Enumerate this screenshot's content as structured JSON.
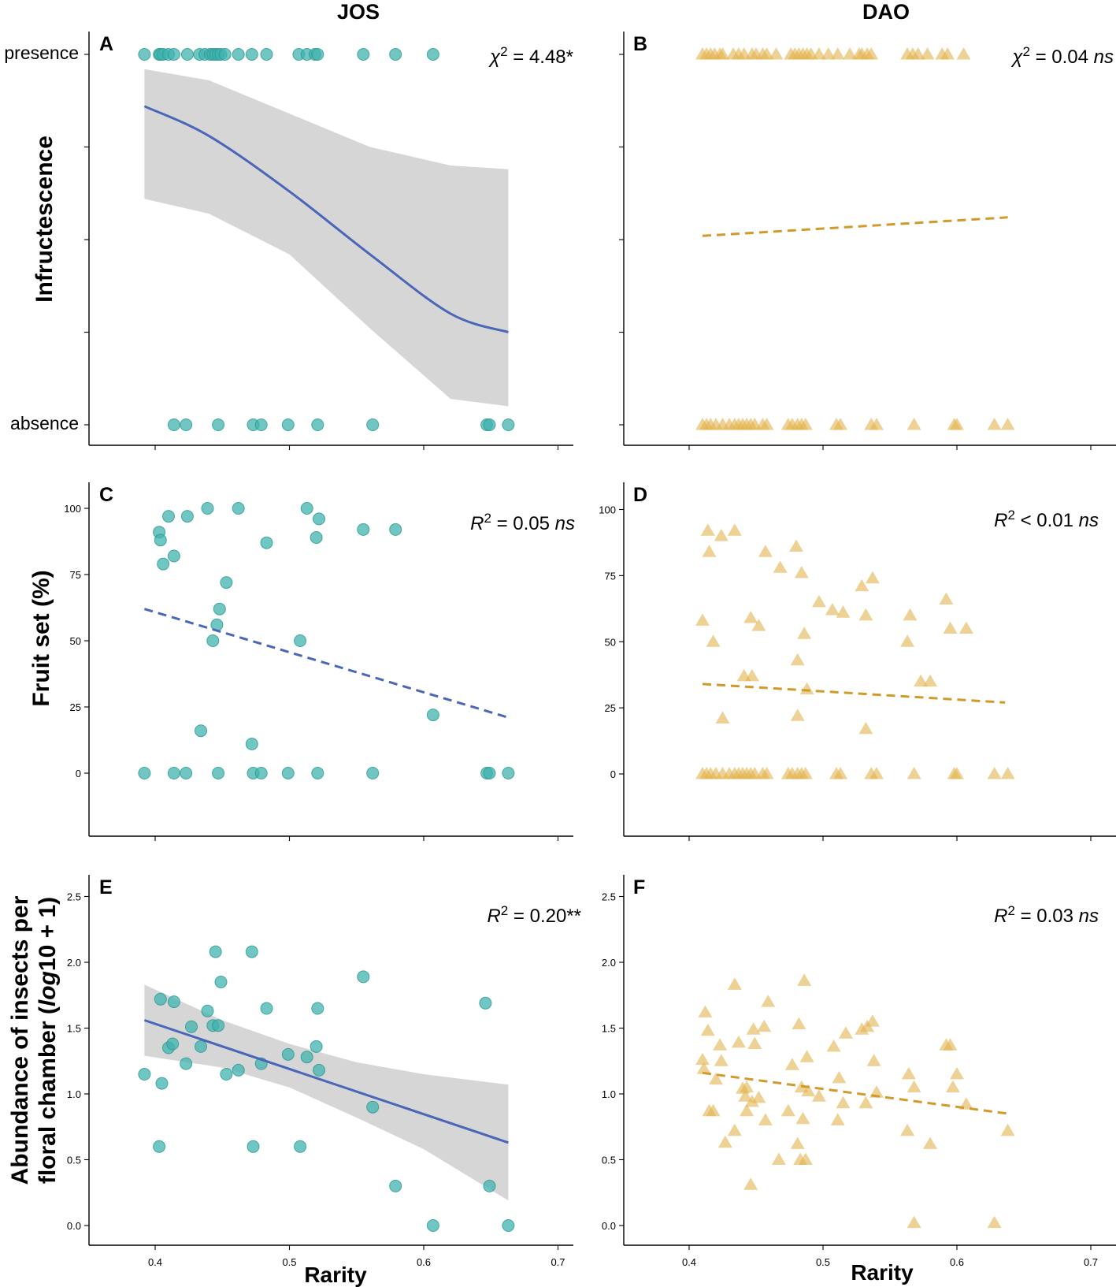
{
  "figure": {
    "column_titles": [
      "JOS",
      "DAO"
    ],
    "x_axis_title": "Rarity",
    "colors": {
      "jos_point": "#3fb3ad",
      "jos_point_edge": "#2c9690",
      "jos_line": "#4a66b8",
      "dao_point": "#e3b24c",
      "dao_line": "#d19a2a",
      "ci_band": "#d6d6d7"
    },
    "marker_icons": {
      "jos": "circle-icon",
      "dao": "triangle-icon"
    }
  },
  "chart_data": [
    {
      "id": "A",
      "panel_label": "A",
      "site": "JOS",
      "type": "scatter",
      "ylabel": "Infructescence",
      "category_labels": [
        "presence",
        "absence"
      ],
      "xlim": [
        0.35,
        0.7
      ],
      "xticks": [
        0.4,
        0.5,
        0.6,
        0.7
      ],
      "ylim": [
        -0.05,
        1.0
      ],
      "ylevel_ticks": [
        0,
        0.25,
        0.5,
        0.75,
        1
      ],
      "show_x_tick_labels": false,
      "stat_prefix": "χ",
      "stat_exp": "2",
      "stat_rest": " = 4.48*",
      "stat_italic": "",
      "marker": "circle",
      "presence_x": [
        0.392,
        0.403,
        0.404,
        0.406,
        0.41,
        0.414,
        0.424,
        0.433,
        0.437,
        0.441,
        0.443,
        0.445,
        0.447,
        0.449,
        0.452,
        0.462,
        0.472,
        0.483,
        0.507,
        0.513,
        0.519,
        0.521,
        0.555,
        0.579,
        0.607
      ],
      "absence_x": [
        0.414,
        0.423,
        0.447,
        0.473,
        0.479,
        0.499,
        0.521,
        0.562,
        0.647,
        0.649,
        0.663
      ],
      "fit": {
        "style": "solid",
        "x": [
          0.392,
          0.44,
          0.5,
          0.56,
          0.62,
          0.663
        ],
        "y": [
          0.86,
          0.78,
          0.63,
          0.46,
          0.3,
          0.25
        ]
      },
      "ci": {
        "x": [
          0.392,
          0.44,
          0.5,
          0.56,
          0.62,
          0.663
        ],
        "lower": [
          0.61,
          0.57,
          0.46,
          0.26,
          0.07,
          0.05
        ],
        "upper": [
          0.96,
          0.93,
          0.84,
          0.75,
          0.7,
          0.69
        ]
      }
    },
    {
      "id": "B",
      "panel_label": "B",
      "site": "DAO",
      "type": "scatter",
      "ylabel": "",
      "category_labels": [],
      "xlim": [
        0.35,
        0.7
      ],
      "xticks": [
        0.4,
        0.5,
        0.6,
        0.7
      ],
      "ylim": [
        -0.05,
        1.0
      ],
      "ylevel_ticks": [
        0,
        0.25,
        0.5,
        0.75,
        1
      ],
      "show_x_tick_labels": false,
      "stat_prefix": "χ",
      "stat_exp": "2",
      "stat_rest": " = 0.04 ",
      "stat_italic": "ns",
      "marker": "triangle",
      "presence_x": [
        0.41,
        0.413,
        0.416,
        0.419,
        0.423,
        0.425,
        0.433,
        0.437,
        0.441,
        0.447,
        0.45,
        0.455,
        0.458,
        0.465,
        0.476,
        0.479,
        0.482,
        0.485,
        0.488,
        0.491,
        0.497,
        0.504,
        0.511,
        0.52,
        0.527,
        0.529,
        0.533,
        0.536,
        0.563,
        0.567,
        0.571,
        0.578,
        0.589,
        0.593,
        0.605
      ],
      "absence_x": [
        0.41,
        0.413,
        0.416,
        0.42,
        0.425,
        0.43,
        0.434,
        0.437,
        0.44,
        0.443,
        0.446,
        0.449,
        0.455,
        0.458,
        0.474,
        0.477,
        0.481,
        0.484,
        0.487,
        0.51,
        0.513,
        0.536,
        0.54,
        0.568,
        0.598,
        0.6,
        0.628,
        0.638
      ],
      "fit": {
        "style": "dashed",
        "x": [
          0.41,
          0.638
        ],
        "y": [
          0.51,
          0.56
        ]
      }
    },
    {
      "id": "C",
      "panel_label": "C",
      "site": "JOS",
      "type": "scatter",
      "ylabel": "Fruit set (%)",
      "xlim": [
        0.35,
        0.7
      ],
      "xticks": [
        0.4,
        0.5,
        0.6,
        0.7
      ],
      "ylim": [
        -24,
        105
      ],
      "yticks": [
        0,
        25,
        50,
        75,
        100
      ],
      "show_x_tick_labels": false,
      "stat_prefix": "R",
      "stat_exp": "2",
      "stat_rest": " = 0.05 ",
      "stat_italic": "ns",
      "marker": "circle",
      "points": [
        [
          0.392,
          0
        ],
        [
          0.403,
          91
        ],
        [
          0.404,
          88
        ],
        [
          0.406,
          79
        ],
        [
          0.41,
          97
        ],
        [
          0.414,
          82
        ],
        [
          0.414,
          0
        ],
        [
          0.423,
          0
        ],
        [
          0.424,
          97
        ],
        [
          0.434,
          16
        ],
        [
          0.439,
          100
        ],
        [
          0.443,
          50
        ],
        [
          0.446,
          56
        ],
        [
          0.447,
          0
        ],
        [
          0.448,
          62
        ],
        [
          0.453,
          72
        ],
        [
          0.462,
          100
        ],
        [
          0.472,
          11
        ],
        [
          0.473,
          0
        ],
        [
          0.479,
          0
        ],
        [
          0.483,
          87
        ],
        [
          0.499,
          0
        ],
        [
          0.508,
          50
        ],
        [
          0.513,
          100
        ],
        [
          0.52,
          89
        ],
        [
          0.521,
          0
        ],
        [
          0.522,
          96
        ],
        [
          0.555,
          92
        ],
        [
          0.562,
          0
        ],
        [
          0.579,
          92
        ],
        [
          0.607,
          22
        ],
        [
          0.647,
          0
        ],
        [
          0.649,
          0
        ],
        [
          0.663,
          0
        ]
      ],
      "fit": {
        "style": "dashed",
        "x": [
          0.392,
          0.663
        ],
        "y": [
          62,
          21
        ]
      }
    },
    {
      "id": "D",
      "panel_label": "D",
      "site": "DAO",
      "type": "scatter",
      "ylabel": "",
      "xlim": [
        0.35,
        0.7
      ],
      "xticks": [
        0.4,
        0.5,
        0.6,
        0.7
      ],
      "ylim": [
        -24,
        105
      ],
      "yticks": [
        0,
        25,
        50,
        75,
        100
      ],
      "show_x_tick_labels": false,
      "stat_prefix": "R",
      "stat_exp": "2",
      "stat_rest": " < 0.01 ",
      "stat_italic": "ns",
      "marker": "triangle",
      "points": [
        [
          0.41,
          58
        ],
        [
          0.414,
          92
        ],
        [
          0.415,
          84
        ],
        [
          0.418,
          50
        ],
        [
          0.424,
          90
        ],
        [
          0.425,
          21
        ],
        [
          0.434,
          92
        ],
        [
          0.441,
          37
        ],
        [
          0.446,
          59
        ],
        [
          0.447,
          37
        ],
        [
          0.452,
          56
        ],
        [
          0.457,
          84
        ],
        [
          0.468,
          78
        ],
        [
          0.48,
          86
        ],
        [
          0.481,
          43
        ],
        [
          0.481,
          22
        ],
        [
          0.484,
          76
        ],
        [
          0.486,
          53
        ],
        [
          0.488,
          32
        ],
        [
          0.497,
          65
        ],
        [
          0.507,
          62
        ],
        [
          0.515,
          61
        ],
        [
          0.529,
          71
        ],
        [
          0.532,
          60
        ],
        [
          0.532,
          17
        ],
        [
          0.537,
          74
        ],
        [
          0.563,
          50
        ],
        [
          0.565,
          60
        ],
        [
          0.573,
          35
        ],
        [
          0.58,
          35
        ],
        [
          0.592,
          66
        ],
        [
          0.595,
          55
        ],
        [
          0.607,
          55
        ],
        [
          0.41,
          0
        ],
        [
          0.413,
          0
        ],
        [
          0.416,
          0
        ],
        [
          0.42,
          0
        ],
        [
          0.425,
          0
        ],
        [
          0.43,
          0
        ],
        [
          0.434,
          0
        ],
        [
          0.437,
          0
        ],
        [
          0.44,
          0
        ],
        [
          0.443,
          0
        ],
        [
          0.446,
          0
        ],
        [
          0.449,
          0
        ],
        [
          0.455,
          0
        ],
        [
          0.458,
          0
        ],
        [
          0.474,
          0
        ],
        [
          0.477,
          0
        ],
        [
          0.481,
          0
        ],
        [
          0.484,
          0
        ],
        [
          0.487,
          0
        ],
        [
          0.51,
          0
        ],
        [
          0.513,
          0
        ],
        [
          0.536,
          0
        ],
        [
          0.54,
          0
        ],
        [
          0.568,
          0
        ],
        [
          0.598,
          0
        ],
        [
          0.6,
          0
        ],
        [
          0.628,
          0
        ],
        [
          0.638,
          0
        ]
      ],
      "fit": {
        "style": "dashed",
        "x": [
          0.41,
          0.636
        ],
        "y": [
          34,
          27
        ]
      }
    },
    {
      "id": "E",
      "panel_label": "E",
      "site": "JOS",
      "type": "scatter",
      "ylabel": "Abundance of insects per floral chamber (log10 + 1)",
      "ylabel_line1": "Abundance of insects per",
      "ylabel_line2_pre": "floral chamber (",
      "ylabel_line2_italic": "log",
      "ylabel_line2_post": "10 + 1)",
      "xlabel": "Rarity",
      "xlim": [
        0.35,
        0.7
      ],
      "xticks": [
        0.4,
        0.5,
        0.6,
        0.7
      ],
      "xtick_labels": [
        "0.4",
        "0.5",
        "0.6",
        "0.7"
      ],
      "ylim": [
        -0.08,
        2.6
      ],
      "yticks": [
        0,
        0.5,
        1,
        1.5,
        2,
        2.5
      ],
      "ytick_labels": [
        "0.0",
        "0.5",
        "1.0",
        "1.5",
        "2.0",
        "2.5"
      ],
      "show_x_tick_labels": true,
      "stat_prefix": "R",
      "stat_exp": "2",
      "stat_rest": " = 0.20**",
      "stat_italic": "",
      "marker": "circle",
      "points": [
        [
          0.392,
          1.15
        ],
        [
          0.403,
          0.6
        ],
        [
          0.404,
          1.72
        ],
        [
          0.405,
          1.08
        ],
        [
          0.41,
          1.35
        ],
        [
          0.413,
          1.38
        ],
        [
          0.414,
          1.7
        ],
        [
          0.423,
          1.23
        ],
        [
          0.427,
          1.51
        ],
        [
          0.434,
          1.36
        ],
        [
          0.439,
          1.63
        ],
        [
          0.443,
          1.52
        ],
        [
          0.445,
          2.08
        ],
        [
          0.447,
          1.52
        ],
        [
          0.449,
          1.85
        ],
        [
          0.453,
          1.15
        ],
        [
          0.462,
          1.18
        ],
        [
          0.472,
          2.08
        ],
        [
          0.473,
          0.6
        ],
        [
          0.479,
          1.23
        ],
        [
          0.483,
          1.65
        ],
        [
          0.499,
          1.3
        ],
        [
          0.508,
          0.6
        ],
        [
          0.513,
          1.28
        ],
        [
          0.52,
          1.36
        ],
        [
          0.521,
          1.65
        ],
        [
          0.522,
          1.18
        ],
        [
          0.555,
          1.89
        ],
        [
          0.562,
          0.9
        ],
        [
          0.579,
          0.3
        ],
        [
          0.607,
          0.0
        ],
        [
          0.646,
          1.69
        ],
        [
          0.649,
          0.3
        ],
        [
          0.663,
          0.0
        ]
      ],
      "fit": {
        "style": "solid",
        "x": [
          0.392,
          0.663
        ],
        "y": [
          1.56,
          0.63
        ]
      },
      "ci": {
        "x": [
          0.392,
          0.45,
          0.5,
          0.55,
          0.6,
          0.663
        ],
        "lower": [
          1.29,
          1.2,
          1.05,
          0.82,
          0.58,
          0.19
        ],
        "upper": [
          1.83,
          1.56,
          1.38,
          1.24,
          1.15,
          1.07
        ]
      }
    },
    {
      "id": "F",
      "panel_label": "F",
      "site": "DAO",
      "type": "scatter",
      "ylabel": "",
      "xlabel": "Rarity",
      "xlim": [
        0.35,
        0.7
      ],
      "xticks": [
        0.4,
        0.5,
        0.6,
        0.7
      ],
      "xtick_labels": [
        "0.4",
        "0.5",
        "0.6",
        "0.7"
      ],
      "ylim": [
        -0.08,
        2.6
      ],
      "yticks": [
        0,
        0.5,
        1,
        1.5,
        2,
        2.5
      ],
      "ytick_labels": [
        "0.0",
        "0.5",
        "1.0",
        "1.5",
        "2.0",
        "2.5"
      ],
      "show_x_tick_labels": true,
      "stat_prefix": "R",
      "stat_exp": "2",
      "stat_rest": " = 0.03 ",
      "stat_italic": "ns",
      "marker": "triangle",
      "points": [
        [
          0.41,
          1.26
        ],
        [
          0.411,
          1.19
        ],
        [
          0.412,
          1.62
        ],
        [
          0.414,
          1.48
        ],
        [
          0.415,
          0.87
        ],
        [
          0.418,
          0.87
        ],
        [
          0.42,
          1.11
        ],
        [
          0.423,
          1.37
        ],
        [
          0.424,
          1.25
        ],
        [
          0.427,
          0.63
        ],
        [
          0.434,
          0.72
        ],
        [
          0.434,
          1.83
        ],
        [
          0.437,
          1.39
        ],
        [
          0.44,
          1.04
        ],
        [
          0.442,
          0.98
        ],
        [
          0.443,
          1.05
        ],
        [
          0.443,
          0.87
        ],
        [
          0.446,
          0.31
        ],
        [
          0.447,
          0.94
        ],
        [
          0.448,
          1.49
        ],
        [
          0.449,
          1.38
        ],
        [
          0.452,
          0.97
        ],
        [
          0.456,
          1.51
        ],
        [
          0.457,
          0.8
        ],
        [
          0.459,
          1.7
        ],
        [
          0.467,
          0.5
        ],
        [
          0.474,
          0.87
        ],
        [
          0.477,
          1.22
        ],
        [
          0.481,
          0.62
        ],
        [
          0.482,
          1.53
        ],
        [
          0.483,
          0.5
        ],
        [
          0.484,
          1.05
        ],
        [
          0.485,
          0.81
        ],
        [
          0.486,
          1.86
        ],
        [
          0.487,
          0.5
        ],
        [
          0.488,
          1.28
        ],
        [
          0.489,
          1.02
        ],
        [
          0.497,
          0.98
        ],
        [
          0.508,
          1.36
        ],
        [
          0.511,
          0.8
        ],
        [
          0.512,
          1.12
        ],
        [
          0.515,
          0.93
        ],
        [
          0.517,
          1.46
        ],
        [
          0.529,
          1.49
        ],
        [
          0.532,
          0.93
        ],
        [
          0.533,
          1.51
        ],
        [
          0.537,
          1.55
        ],
        [
          0.538,
          1.25
        ],
        [
          0.54,
          1.01
        ],
        [
          0.563,
          0.72
        ],
        [
          0.564,
          1.15
        ],
        [
          0.568,
          1.05
        ],
        [
          0.568,
          0.02
        ],
        [
          0.58,
          0.62
        ],
        [
          0.592,
          1.37
        ],
        [
          0.595,
          1.37
        ],
        [
          0.597,
          1.05
        ],
        [
          0.6,
          1.15
        ],
        [
          0.607,
          0.92
        ],
        [
          0.628,
          0.02
        ],
        [
          0.638,
          0.72
        ]
      ],
      "fit": {
        "style": "dashed",
        "x": [
          0.41,
          0.638
        ],
        "y": [
          1.16,
          0.85
        ]
      }
    }
  ]
}
